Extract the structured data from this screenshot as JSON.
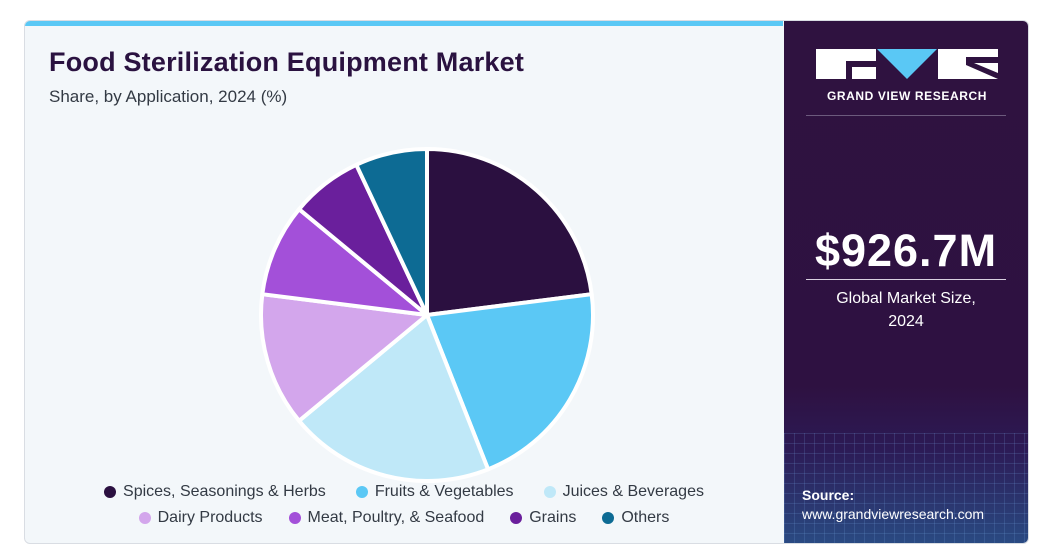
{
  "header": {
    "title": "Food Sterilization Equipment Market",
    "subtitle": "Share, by Application, 2024 (%)"
  },
  "chart_data": {
    "type": "pie",
    "title": "Food Sterilization Equipment Market",
    "subtitle": "Share, by Application, 2024 (%)",
    "legend_position": "bottom",
    "slices": [
      {
        "label": "Spices, Seasonings & Herbs",
        "value": 23,
        "color": "#2b1040"
      },
      {
        "label": "Fruits & Vegetables",
        "value": 21,
        "color": "#5bc8f5"
      },
      {
        "label": "Juices & Beverages",
        "value": 20,
        "color": "#bfe8f8"
      },
      {
        "label": "Dairy Products",
        "value": 13,
        "color": "#d3a6ec"
      },
      {
        "label": "Meat, Poultry, & Seafood",
        "value": 9,
        "color": "#a350d9"
      },
      {
        "label": "Grains",
        "value": 7,
        "color": "#6a1f9c"
      },
      {
        "label": "Others",
        "value": 7,
        "color": "#0d6b94"
      }
    ]
  },
  "sidebar": {
    "brand": "GRAND VIEW RESEARCH",
    "market_value": "$926.7M",
    "market_label_line1": "Global Market Size,",
    "market_label_line2": "2024",
    "source_title": "Source:",
    "source_url": "www.grandviewresearch.com"
  },
  "colors": {
    "sidebar_bg": "#2f1240",
    "accent": "#5ac8f5",
    "title": "#2a1240"
  }
}
